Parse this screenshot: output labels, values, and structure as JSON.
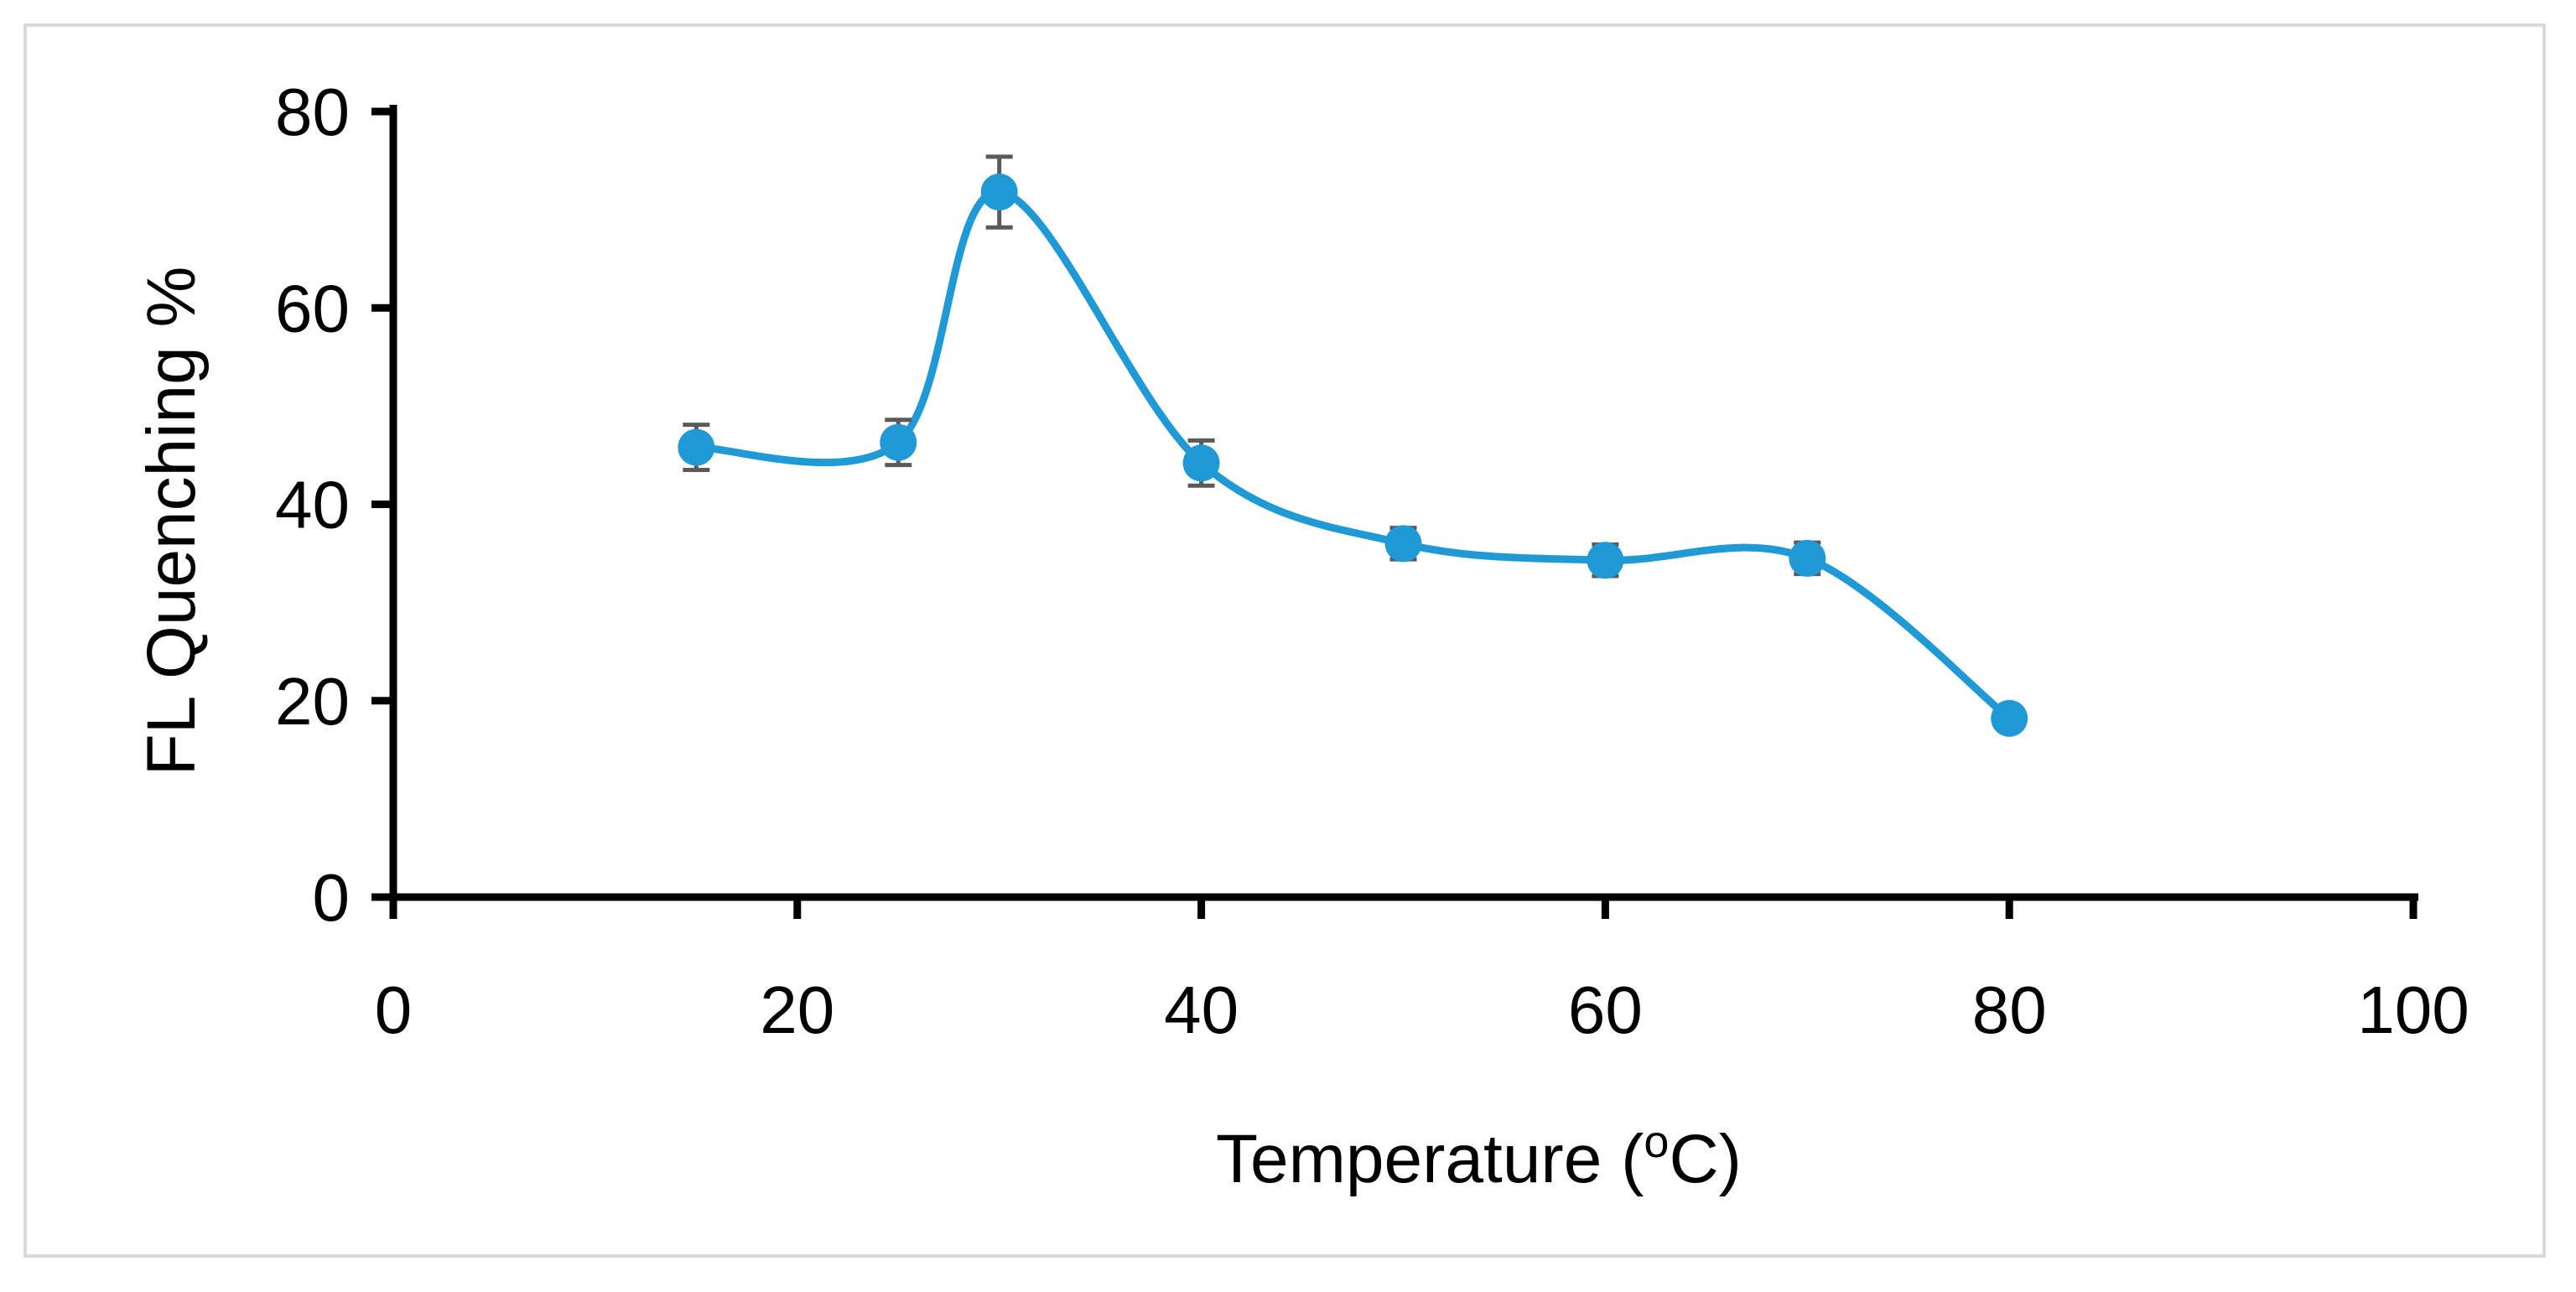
{
  "chart_data": {
    "type": "line",
    "title": "",
    "xlabel": "Temperature (",
    "xlabel_superscript": "o",
    "xlabel_tail": "C)",
    "ylabel": "FL Quenching %",
    "xlim": [
      0,
      100
    ],
    "ylim": [
      0,
      80
    ],
    "x_ticks": [
      0,
      20,
      40,
      60,
      80,
      100
    ],
    "y_ticks": [
      0,
      20,
      40,
      60,
      80
    ],
    "x_tick_labels": [
      "0",
      "20",
      "40",
      "60",
      "80",
      "100"
    ],
    "y_tick_labels": [
      "0",
      "20",
      "40",
      "60",
      "80"
    ],
    "grid": false,
    "smooth": true,
    "series": [
      {
        "name": "FL Quenching",
        "color": "#1f9ad6",
        "x": [
          15,
          25,
          30,
          40,
          50,
          60,
          70,
          80
        ],
        "y": [
          45.8,
          46.3,
          71.8,
          44.2,
          36.0,
          34.3,
          34.5,
          18.2
        ],
        "error": [
          2.3,
          2.3,
          3.6,
          2.3,
          1.6,
          1.6,
          1.6,
          0
        ]
      }
    ],
    "axis_color": "#000000",
    "errorbar_color": "#5a5a5a"
  }
}
